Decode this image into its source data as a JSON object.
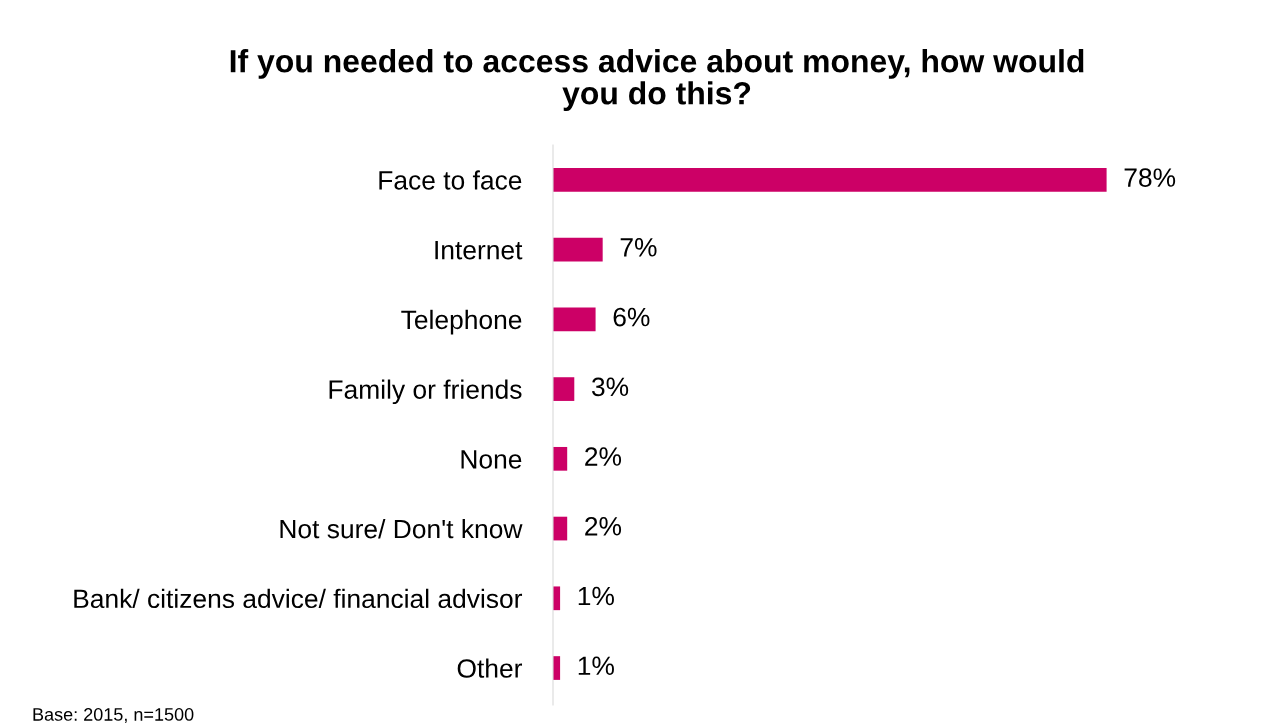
{
  "chart_data": {
    "type": "bar",
    "orientation": "horizontal",
    "title": "If you needed to access advice about money, how would\nyou do this?",
    "categories": [
      "Face to face",
      "Internet",
      "Telephone",
      "Family or friends",
      "None",
      "Not sure/ Don't know",
      "Bank/ citizens advice/ financial advisor",
      "Other"
    ],
    "values": [
      78,
      7,
      6,
      3,
      2,
      2,
      1,
      1
    ],
    "value_labels": [
      "78%",
      "7%",
      "6%",
      "3%",
      "2%",
      "2%",
      "1%",
      "1%"
    ],
    "color": "#cc0066",
    "annotations": [
      "Base: 2015, n=1500"
    ]
  }
}
